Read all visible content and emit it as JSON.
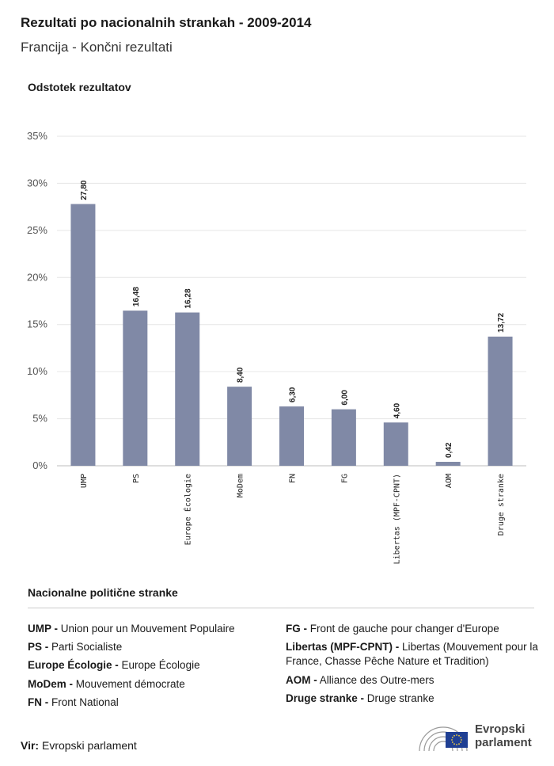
{
  "header": {
    "title": "Rezultati po nacionalnih strankah - 2009-2014",
    "subtitle": "Francija - Končni rezultati"
  },
  "chart_data": {
    "type": "bar",
    "ylabel": "Odstotek rezultatov",
    "ylim": [
      0,
      35
    ],
    "yticks": [
      "0%",
      "5%",
      "10%",
      "15%",
      "20%",
      "25%",
      "30%",
      "35%"
    ],
    "categories": [
      "UMP",
      "PS",
      "Europe Écologie",
      "MoDem",
      "FN",
      "FG",
      "Libertas (MPF-CPNT)",
      "AOM",
      "Druge stranke"
    ],
    "values": [
      27.8,
      16.48,
      16.28,
      8.4,
      6.3,
      6.0,
      4.6,
      0.42,
      13.72
    ],
    "data_labels": [
      "27,80",
      "16,48",
      "16,28",
      "8,40",
      "6,30",
      "6,00",
      "4,60",
      "0,42",
      "13,72"
    ],
    "bar_color": "#8089a6",
    "grid": true
  },
  "legend": {
    "title": "Nacionalne politične stranke",
    "left": [
      {
        "abbr": "UMP -",
        "name": "Union pour un Mouvement Populaire"
      },
      {
        "abbr": "PS -",
        "name": "Parti Socialiste"
      },
      {
        "abbr": "Europe Écologie -",
        "name": "Europe Écologie"
      },
      {
        "abbr": "MoDem -",
        "name": "Mouvement démocrate"
      },
      {
        "abbr": "FN -",
        "name": "Front National"
      }
    ],
    "right": [
      {
        "abbr": "FG -",
        "name": "Front de gauche pour changer d'Europe"
      },
      {
        "abbr": "Libertas (MPF-CPNT) -",
        "name": "Libertas (Mouvement pour la France, Chasse Pêche Nature et Tradition)"
      },
      {
        "abbr": "AOM -",
        "name": "Alliance des Outre-mers"
      },
      {
        "abbr": "Druge stranke -",
        "name": "Druge stranke"
      }
    ]
  },
  "footer": {
    "source_label": "Vir:",
    "source_value": "Evropski parlament",
    "logo_line1": "Evropski",
    "logo_line2": "parlament",
    "logo_flag_color": "#1f3f93",
    "logo_star_color": "#f4d03f"
  }
}
